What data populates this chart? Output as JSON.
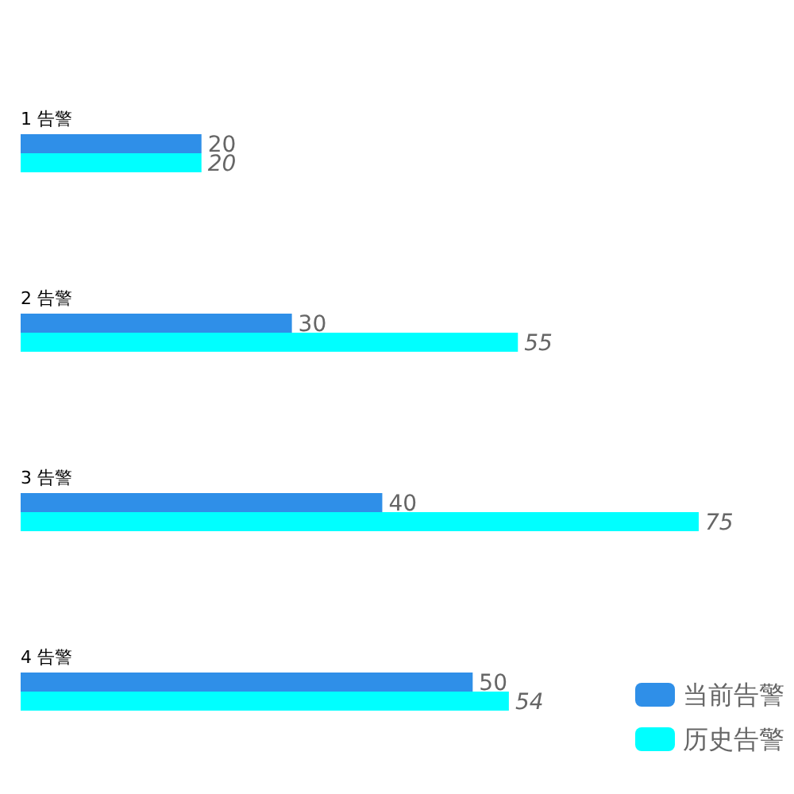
{
  "chart_data": {
    "type": "bar",
    "orientation": "horizontal",
    "categories": [
      "1 告警",
      "2 告警",
      "3 告警",
      "4 告警"
    ],
    "series": [
      {
        "name": "当前告警",
        "color": "#2f8fe8",
        "values": [
          20,
          30,
          40,
          50
        ]
      },
      {
        "name": "历史告警",
        "color": "#00ffff",
        "values": [
          20,
          55,
          75,
          54
        ]
      }
    ],
    "data_labels": true,
    "legend": "bottom right"
  }
}
